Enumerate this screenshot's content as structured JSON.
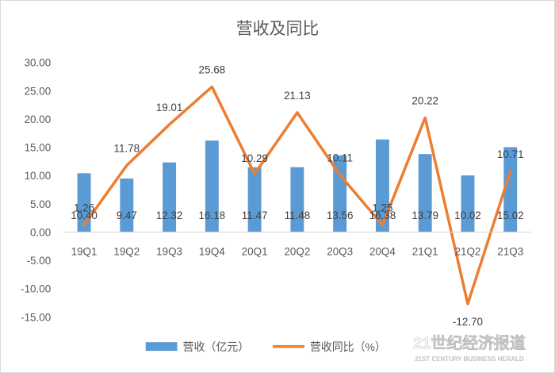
{
  "chart_data": {
    "type": "bar+line",
    "title": "营收及同比",
    "categories": [
      "19Q1",
      "19Q2",
      "19Q3",
      "19Q4",
      "20Q1",
      "20Q2",
      "20Q3",
      "20Q4",
      "21Q1",
      "21Q2",
      "21Q3"
    ],
    "series": [
      {
        "name": "营收（亿元）",
        "kind": "bar",
        "color": "#5b9bd5",
        "values": [
          10.4,
          9.47,
          12.32,
          16.18,
          11.47,
          11.48,
          13.56,
          16.38,
          13.79,
          10.02,
          15.02
        ],
        "labels": [
          "10.40",
          "9.47",
          "12.32",
          "16.18",
          "11.47",
          "11.48",
          "13.56",
          "16.38",
          "13.79",
          "10.02",
          "15.02"
        ]
      },
      {
        "name": "营收同比（%）",
        "kind": "line",
        "color": "#ed7d31",
        "values": [
          1.26,
          11.78,
          19.01,
          25.68,
          10.29,
          21.13,
          10.11,
          1.25,
          20.22,
          -12.7,
          10.71
        ],
        "labels": [
          "1.26",
          "11.78",
          "19.01",
          "25.68",
          "10.29",
          "21.13",
          "10.11",
          "1.25",
          "20.22",
          "-12.70",
          "10.71"
        ]
      }
    ],
    "ylim": [
      -15,
      30
    ],
    "yticks": [
      "30.00",
      "25.00",
      "20.00",
      "15.00",
      "10.00",
      "5.00",
      "0.00",
      "-5.00",
      "-10.00",
      "-15.00"
    ],
    "grid": false,
    "legend_position": "bottom"
  },
  "watermark": {
    "main": "21世纪经济报道",
    "sub": "21ST CENTURY BUSINESS HERALD"
  }
}
